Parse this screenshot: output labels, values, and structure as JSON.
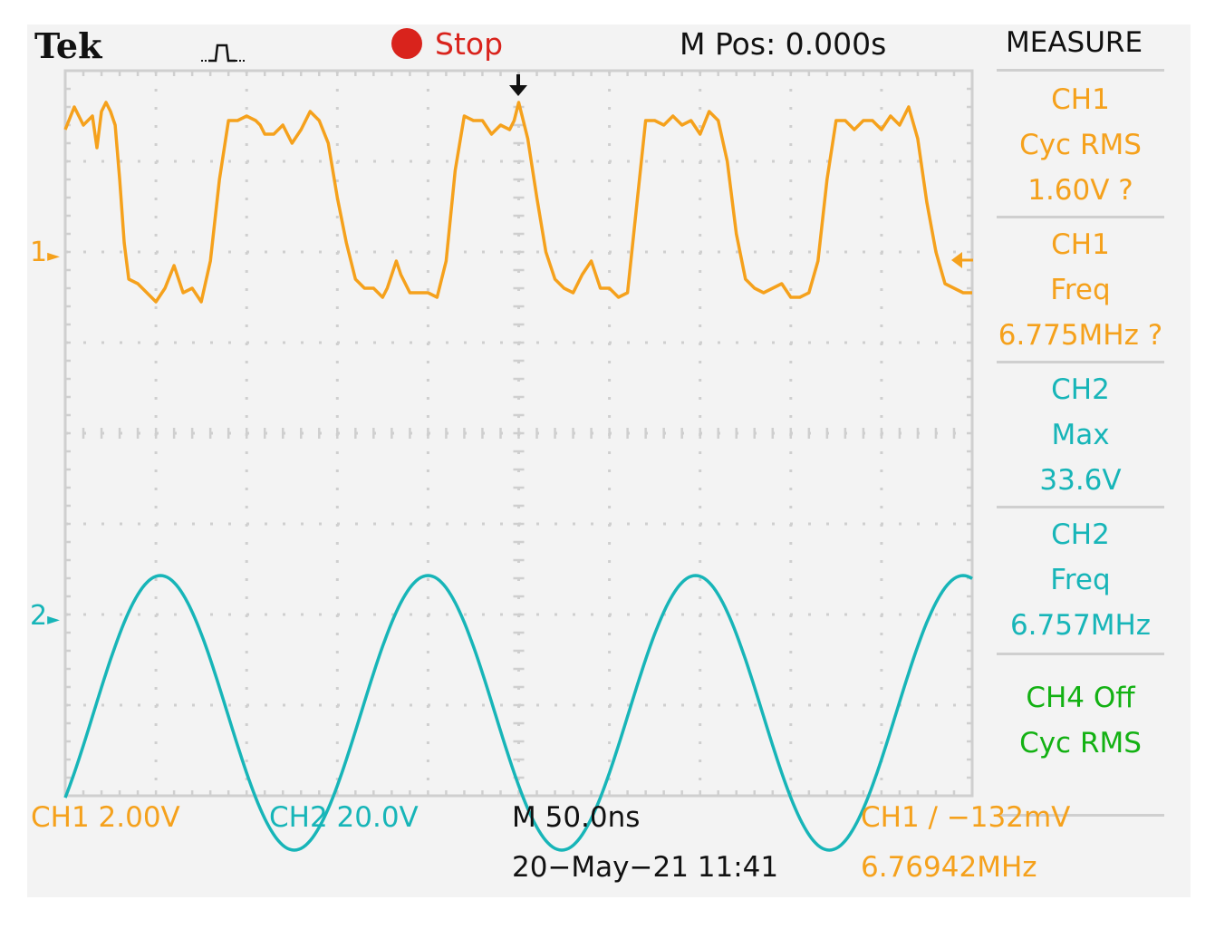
{
  "header": {
    "brand": "Tek",
    "acq_icon": "acquisition-pulse-icon",
    "state": "Stop",
    "state_icon": "stop-dot-icon",
    "mpos": "M Pos: 0.000s"
  },
  "measure": {
    "title": "MEASURE",
    "items": [
      {
        "lines": [
          "CH1",
          "Cyc RMS",
          "1.60V ?"
        ],
        "color": "#f5a11c"
      },
      {
        "lines": [
          "CH1",
          "Freq",
          "6.775MHz ?"
        ],
        "color": "#f5a11c"
      },
      {
        "lines": [
          "CH2",
          "Max",
          "33.6V"
        ],
        "color": "#17b5b8"
      },
      {
        "lines": [
          "CH2",
          "Freq",
          "6.757MHz"
        ],
        "color": "#17b5b8"
      },
      {
        "lines": [
          "CH4 Off",
          "Cyc RMS"
        ],
        "color": "#13b113"
      }
    ]
  },
  "markers": {
    "ch1": "1",
    "ch2": "2",
    "trigger_position_icon": "trigger-position-arrow-icon",
    "trigger_level_icon": "trigger-level-arrow-icon"
  },
  "footer": {
    "ch1_scale": "CH1  2.00V",
    "ch2_scale": "CH2  20.0V",
    "timebase": "M 50.0ns",
    "trigger": "CH1 ∕ −132mV",
    "datetime": "20−May−21 11:41",
    "trigger_freq": "6.76942MHz"
  },
  "colors": {
    "ch1": "#f5a11c",
    "ch2": "#17b5b8",
    "ch4": "#13b113",
    "stop": "#d9231c",
    "grid": "#cfcfcf",
    "background": "#f3f3f3"
  },
  "chart_data": {
    "type": "line",
    "x_divisions": 10,
    "y_divisions": 8,
    "x_unit": "div",
    "y_unit": "div",
    "series": [
      {
        "name": "CH1",
        "color": "#f5a11c",
        "x": [
          0,
          0.1,
          0.2,
          0.3,
          0.35,
          0.4,
          0.45,
          0.5,
          0.55,
          0.6,
          0.65,
          0.7,
          0.8,
          0.9,
          1.0,
          1.1,
          1.2,
          1.3,
          1.4,
          1.5,
          1.6,
          1.7,
          1.8,
          1.9,
          2.0,
          2.1,
          2.15,
          2.2,
          2.3,
          2.4,
          2.5,
          2.6,
          2.7,
          2.8,
          2.9,
          3.0,
          3.1,
          3.2,
          3.3,
          3.4,
          3.5,
          3.55,
          3.6,
          3.65,
          3.7,
          3.8,
          3.9,
          4.0,
          4.1,
          4.2,
          4.3,
          4.4,
          4.5,
          4.6,
          4.7,
          4.8,
          4.9,
          4.95,
          5.0,
          5.1,
          5.2,
          5.3,
          5.4,
          5.5,
          5.6,
          5.7,
          5.8,
          5.9,
          6.0,
          6.1,
          6.2,
          6.3,
          6.4,
          6.5,
          6.6,
          6.7,
          6.8,
          6.9,
          7.0,
          7.1,
          7.2,
          7.3,
          7.4,
          7.5,
          7.6,
          7.7,
          7.8,
          7.9,
          8.0,
          8.1,
          8.2,
          8.3,
          8.4,
          8.5,
          8.6,
          8.7,
          8.8,
          8.9,
          9.0,
          9.1,
          9.2,
          9.3,
          9.4,
          9.5,
          9.6,
          9.7,
          9.8,
          9.9,
          10.0
        ],
        "y": [
          3.35,
          3.6,
          3.4,
          3.5,
          3.15,
          3.55,
          3.65,
          3.55,
          3.4,
          2.8,
          2.1,
          1.7,
          1.65,
          1.55,
          1.45,
          1.6,
          1.85,
          1.55,
          1.6,
          1.45,
          1.9,
          2.8,
          3.45,
          3.45,
          3.5,
          3.45,
          3.4,
          3.3,
          3.3,
          3.4,
          3.2,
          3.35,
          3.55,
          3.45,
          3.2,
          2.6,
          2.1,
          1.7,
          1.6,
          1.6,
          1.5,
          1.6,
          1.75,
          1.9,
          1.75,
          1.55,
          1.55,
          1.55,
          1.5,
          1.9,
          2.9,
          3.5,
          3.45,
          3.45,
          3.3,
          3.4,
          3.35,
          3.45,
          3.65,
          3.25,
          2.6,
          2.0,
          1.7,
          1.6,
          1.55,
          1.75,
          1.9,
          1.6,
          1.6,
          1.5,
          1.55,
          2.5,
          3.45,
          3.45,
          3.4,
          3.5,
          3.4,
          3.45,
          3.3,
          3.55,
          3.45,
          3.0,
          2.2,
          1.7,
          1.6,
          1.55,
          1.6,
          1.65,
          1.5,
          1.5,
          1.55,
          1.9,
          2.8,
          3.45,
          3.45,
          3.35,
          3.45,
          3.45,
          3.35,
          3.5,
          3.4,
          3.6,
          3.25,
          2.55,
          2.0,
          1.65,
          1.6,
          1.55,
          1.55
        ]
      },
      {
        "name": "CH2",
        "color": "#17b5b8",
        "sine": {
          "period_div": 2.95,
          "peak_x_div": 1.05,
          "max_div": -1.57,
          "min_div": -4.6
        }
      }
    ]
  }
}
